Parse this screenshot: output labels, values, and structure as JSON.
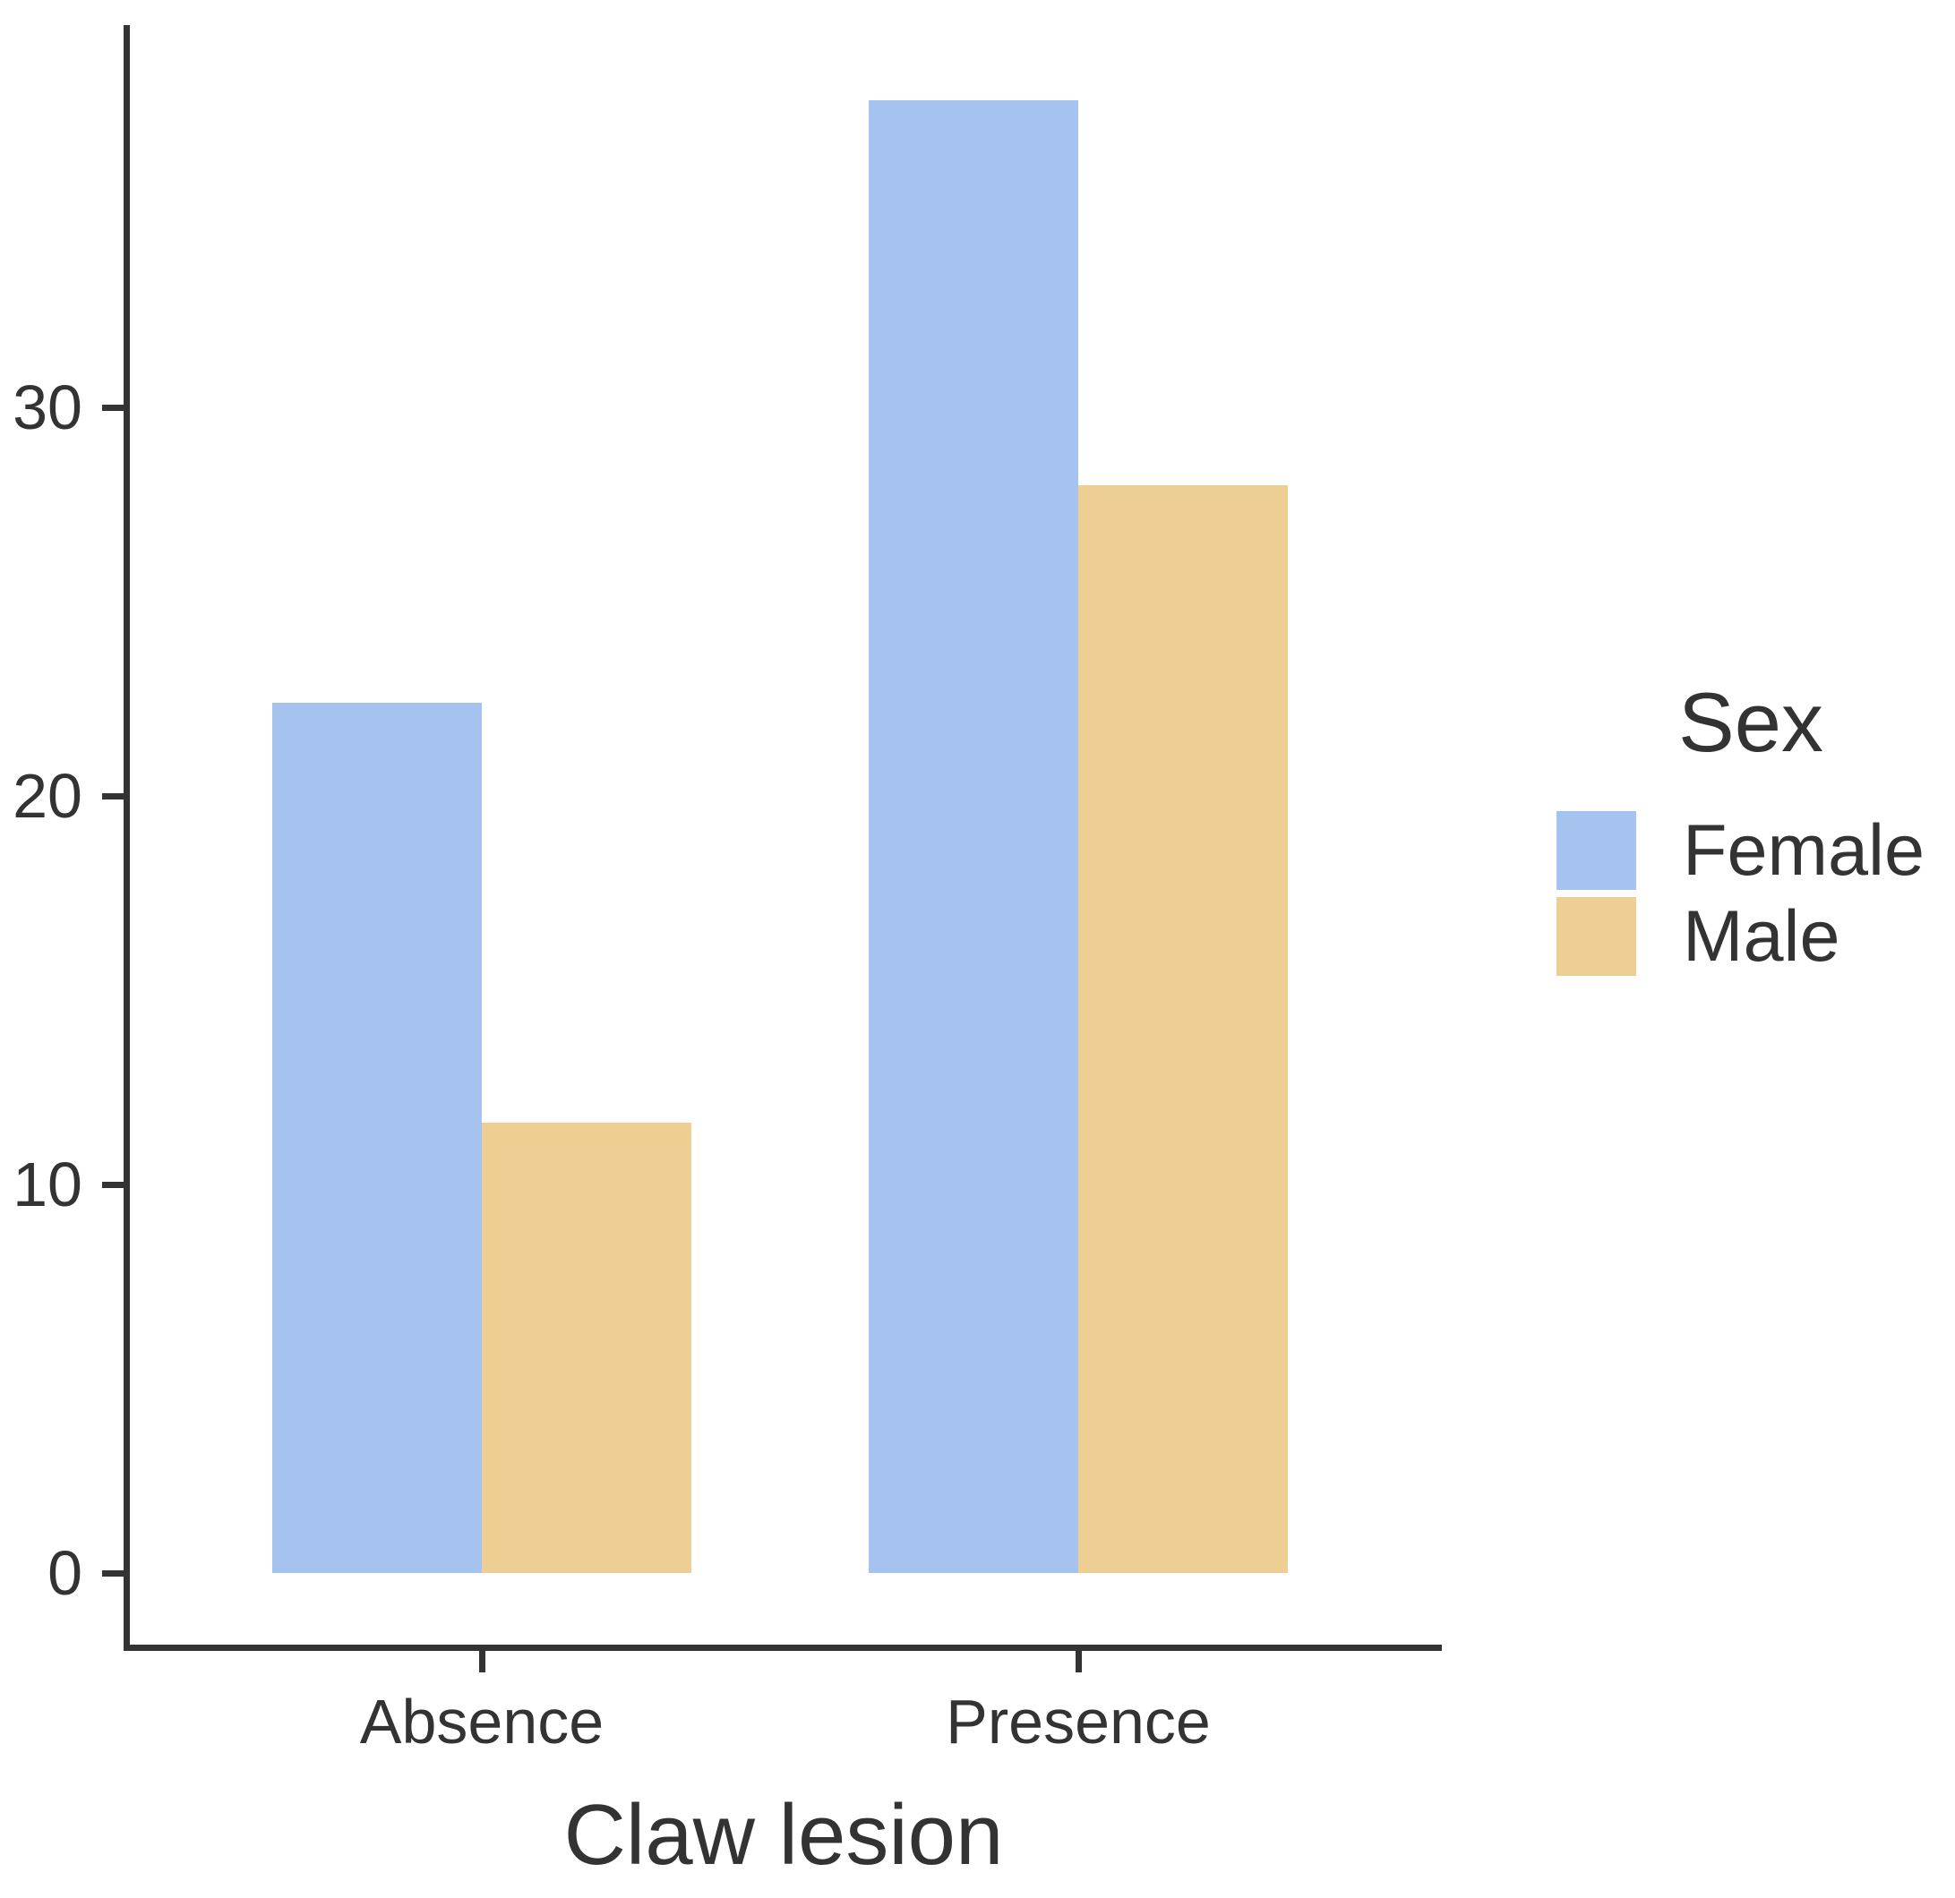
{
  "chart_data": {
    "type": "bar",
    "title": "",
    "xlabel": "Claw lesion",
    "ylabel": "",
    "categories": [
      "Absence",
      "Presence"
    ],
    "series": [
      {
        "name": "Female",
        "color": "#a5c3ee",
        "values": [
          22.4,
          37.9
        ]
      },
      {
        "name": "Male",
        "color": "#edcf94",
        "values": [
          11.6,
          28.0
        ]
      }
    ],
    "yticks": [
      0,
      10,
      20,
      30
    ],
    "ylim": [
      0,
      39.8
    ],
    "grid": false,
    "bar_grouping": "dodged",
    "legend": {
      "title": "Sex",
      "position": "right",
      "entries": [
        "Female",
        "Male"
      ]
    }
  },
  "colors": {
    "axis": "#333333",
    "text": "#333333",
    "background": "#ffffff",
    "female_fill": "#a5c3ee",
    "male_fill": "#edcf94"
  }
}
